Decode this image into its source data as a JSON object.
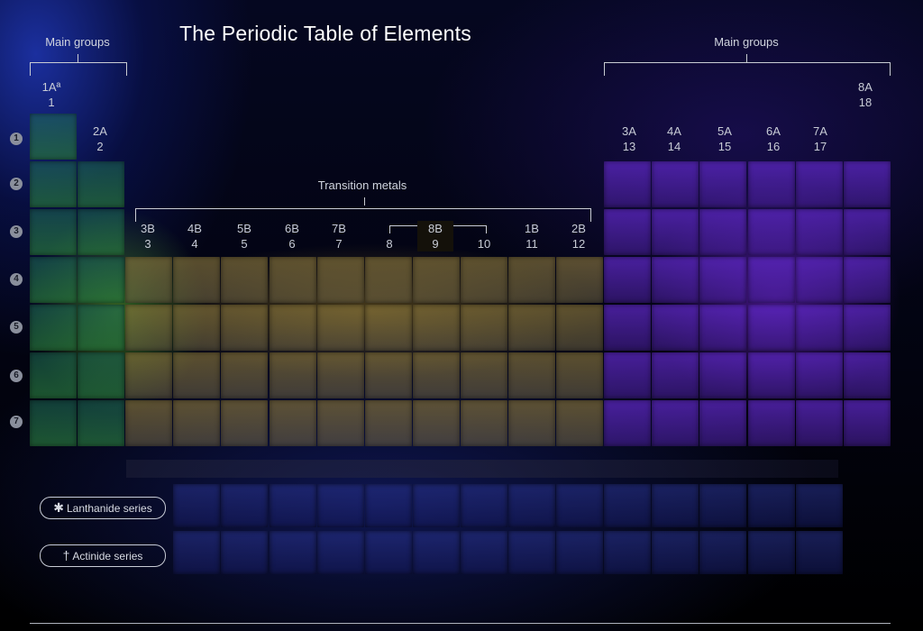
{
  "title": "The Periodic Table of Elements",
  "labels": {
    "main_groups_left": "Main groups",
    "main_groups_right": "Main groups",
    "transition_metals": "Transition metals"
  },
  "groups": [
    {
      "id": "g1",
      "a": "1Aª",
      "n": "1"
    },
    {
      "id": "g2",
      "a": "2A",
      "n": "2"
    },
    {
      "id": "g3",
      "a": "3B",
      "n": "3"
    },
    {
      "id": "g4",
      "a": "4B",
      "n": "4"
    },
    {
      "id": "g5",
      "a": "5B",
      "n": "5"
    },
    {
      "id": "g6",
      "a": "6B",
      "n": "6"
    },
    {
      "id": "g7",
      "a": "7B",
      "n": "7"
    },
    {
      "id": "g8",
      "a": "",
      "n": "8"
    },
    {
      "id": "g9",
      "a": "8B",
      "n": "9"
    },
    {
      "id": "g10",
      "a": "",
      "n": "10"
    },
    {
      "id": "g11",
      "a": "1B",
      "n": "11"
    },
    {
      "id": "g12",
      "a": "2B",
      "n": "12"
    },
    {
      "id": "g13",
      "a": "3A",
      "n": "13"
    },
    {
      "id": "g14",
      "a": "4A",
      "n": "14"
    },
    {
      "id": "g15",
      "a": "5A",
      "n": "15"
    },
    {
      "id": "g16",
      "a": "6A",
      "n": "16"
    },
    {
      "id": "g17",
      "a": "7A",
      "n": "17"
    },
    {
      "id": "g18",
      "a": "8A",
      "n": "18"
    }
  ],
  "periods": [
    "1",
    "2",
    "3",
    "4",
    "5",
    "6",
    "7"
  ],
  "series": {
    "lanthanide": {
      "symbol": "✱",
      "label": "Lanthanide series"
    },
    "actinide": {
      "symbol": "†",
      "label": "Actinide series"
    }
  },
  "colors": {
    "main_left": "#2e7a4a",
    "transition": "#8c7a3c",
    "main_right": "#5f28c8"
  }
}
